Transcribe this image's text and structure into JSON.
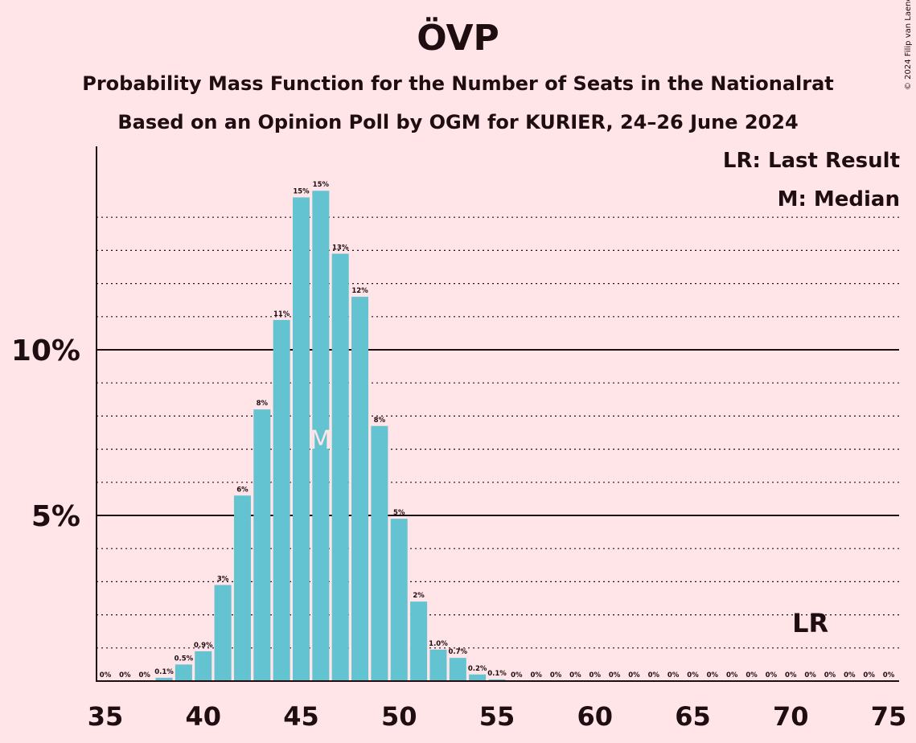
{
  "title": "ÖVP",
  "subtitle1": "Probability Mass Function for the Number of Seats in the Nationalrat",
  "subtitle2": "Based on an Opinion Poll by OGM for KURIER, 24–26 June 2024",
  "legend": {
    "lr": "LR: Last Result",
    "median": "M: Median"
  },
  "copyright": "© 2024 Filip van Laenen",
  "colors": {
    "bar": "#64c3d1",
    "background": "#ffe4e8",
    "text": "#1e0e12"
  },
  "chart_data": {
    "type": "bar",
    "x": [
      35,
      36,
      37,
      38,
      39,
      40,
      41,
      42,
      43,
      44,
      45,
      46,
      47,
      48,
      49,
      50,
      51,
      52,
      53,
      54,
      55,
      56,
      57,
      58,
      59,
      60,
      61,
      62,
      63,
      64,
      65,
      66,
      67,
      68,
      69,
      70,
      71,
      72,
      73,
      74,
      75
    ],
    "values": [
      0,
      0,
      0,
      0.1,
      0.5,
      0.9,
      2.9,
      5.6,
      8.2,
      10.9,
      14.6,
      14.8,
      12.9,
      11.6,
      7.7,
      4.9,
      2.4,
      0.95,
      0.7,
      0.2,
      0.05,
      0,
      0,
      0,
      0,
      0,
      0,
      0,
      0,
      0,
      0,
      0,
      0,
      0,
      0,
      0,
      0,
      0,
      0,
      0,
      0
    ],
    "data_labels": [
      "0%",
      "0%",
      "0%",
      "0.1%",
      "0.5%",
      "0.9%",
      "3%",
      "6%",
      "8%",
      "11%",
      "15%",
      "15%",
      "13%",
      "12%",
      "8%",
      "5%",
      "2%",
      "1.0%",
      "0.7%",
      "0.2%",
      "0.1%",
      "0%",
      "0%",
      "0%",
      "0%",
      "0%",
      "0%",
      "0%",
      "0%",
      "0%",
      "0%",
      "0%",
      "0%",
      "0%",
      "0%",
      "0%",
      "0%",
      "0%",
      "0%",
      "0%",
      "0%"
    ],
    "x_ticks": [
      "35",
      "40",
      "45",
      "50",
      "55",
      "60",
      "65",
      "70",
      "75"
    ],
    "y_ticks": [
      {
        "value": 5,
        "label": "5%"
      },
      {
        "value": 10,
        "label": "10%"
      }
    ],
    "ylim": [
      0,
      16
    ],
    "grid": "dotted every 1%, solid at 5% and 10%",
    "median": 46,
    "median_label": "M",
    "last_result": 71,
    "last_result_label": "LR"
  }
}
